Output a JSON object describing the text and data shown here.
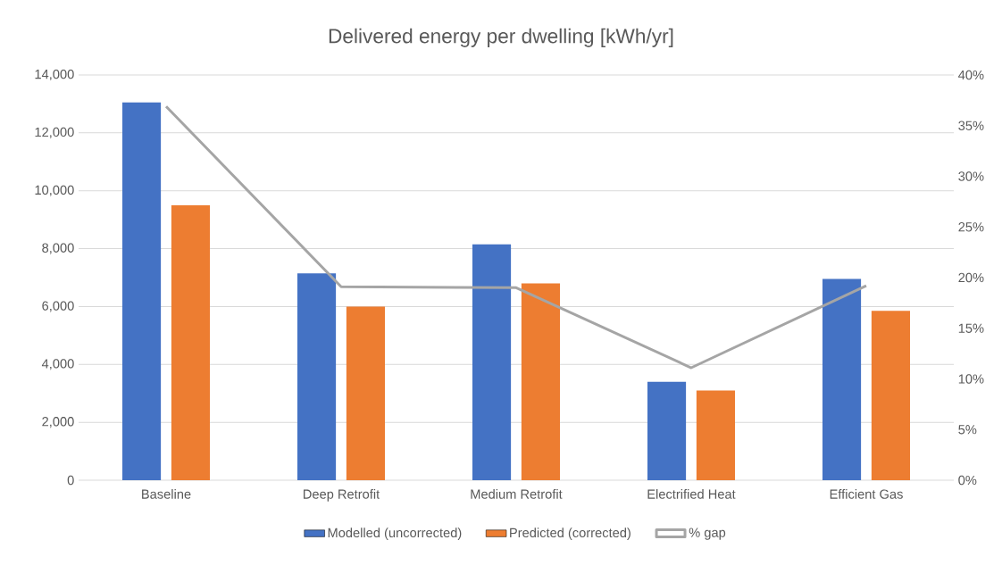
{
  "chart_data": {
    "type": "bar",
    "title": "Delivered energy per dwelling [kWh/yr]",
    "categories": [
      "Baseline",
      "Deep Retrofit",
      "Medium Retrofit",
      "Electrified Heat",
      "Efficient Gas"
    ],
    "series": [
      {
        "name": "Modelled (uncorrected)",
        "color": "#4472c4",
        "values": [
          13050,
          7150,
          8150,
          3400,
          6950
        ]
      },
      {
        "name": "Predicted (corrected)",
        "color": "#ed7d31",
        "values": [
          9500,
          6000,
          6800,
          3100,
          5850
        ]
      },
      {
        "name": "% gap",
        "type": "line",
        "axis": "y2",
        "color": "#a5a5a5",
        "values": [
          36.9,
          19.1,
          19.0,
          11.1,
          19.2
        ]
      }
    ],
    "ylim": [
      0,
      14000
    ],
    "yticks": [
      0,
      {
        "value": 2000,
        "label": "2,000"
      },
      {
        "value": 4000,
        "label": "4,000"
      },
      {
        "value": 6000,
        "label": "6,000"
      },
      {
        "value": 8000,
        "label": "8,000"
      },
      {
        "value": 10000,
        "label": "10,000"
      },
      {
        "value": 12000,
        "label": "12,000"
      },
      {
        "value": 14000,
        "label": "14,000"
      }
    ],
    "y2lim": [
      0,
      40
    ],
    "y2ticks": [
      {
        "value": 0,
        "label": "0%"
      },
      {
        "value": 5,
        "label": "5%"
      },
      {
        "value": 10,
        "label": "10%"
      },
      {
        "value": 15,
        "label": "15%"
      },
      {
        "value": 20,
        "label": "20%"
      },
      {
        "value": 25,
        "label": "25%"
      },
      {
        "value": 30,
        "label": "30%"
      },
      {
        "value": 35,
        "label": "35%"
      },
      {
        "value": 40,
        "label": "40%"
      }
    ],
    "grid": "y",
    "legend": "bottom",
    "marker": "none"
  }
}
